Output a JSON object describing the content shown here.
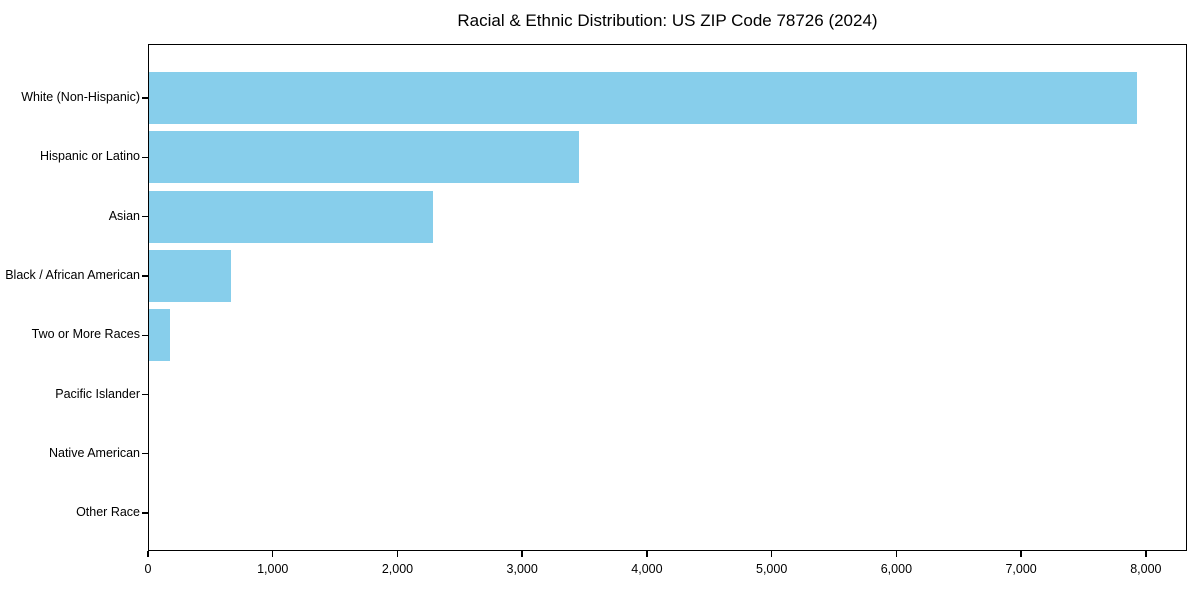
{
  "chart_data": {
    "type": "bar",
    "orientation": "horizontal",
    "title": "Racial & Ethnic Distribution: US ZIP Code 78726 (2024)",
    "categories": [
      "White (Non-Hispanic)",
      "Hispanic or Latino",
      "Asian",
      "Black / African American",
      "Two or More Races",
      "Pacific Islander",
      "Native American",
      "Other Race"
    ],
    "values": [
      7930,
      3455,
      2285,
      665,
      175,
      0,
      0,
      0
    ],
    "xlabel": "",
    "ylabel": "",
    "xlim": [
      0,
      8330
    ],
    "x_ticks": [
      0,
      1000,
      2000,
      3000,
      4000,
      5000,
      6000,
      7000,
      8000
    ],
    "x_tick_labels": [
      "0",
      "1,000",
      "2,000",
      "3,000",
      "4,000",
      "5,000",
      "6,000",
      "7,000",
      "8,000"
    ],
    "bar_color": "#87CEEB",
    "grid": false,
    "legend": null,
    "axis_color": "#000000",
    "text_color": "#000000",
    "background_color": "#ffffff"
  }
}
